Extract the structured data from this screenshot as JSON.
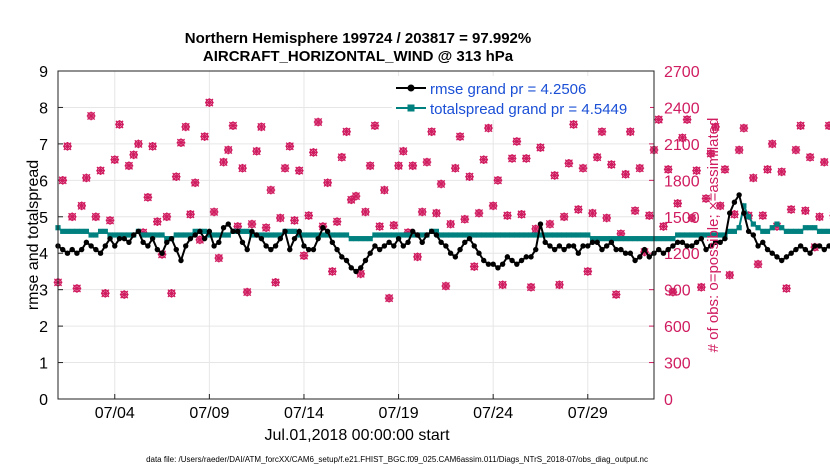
{
  "chart_data": {
    "type": "line",
    "title": "Northern Hemisphere 199724 / 203817 = 97.992%",
    "subtitle": "AIRCRAFT_HORIZONTAL_WIND @ 313 hPa",
    "xlabel": "Jul.01,2018 00:00:00 start",
    "ylabel_left": "rmse and totalspread",
    "ylabel_right": "# of obs: o=possible; ×=assimilated",
    "footnote": "data file: /Users/raeder/DAI/ATM_forcXX/CAM6_setup/f.e21.FHIST_BGC.f09_025.CAM6assim.011/Diags_NTrS_2018-07/obs_diag_output.nc",
    "x_range_days": [
      1,
      32.5
    ],
    "x_ticks": [
      {
        "day": 4,
        "label": "07/04"
      },
      {
        "day": 9,
        "label": "07/09"
      },
      {
        "day": 14,
        "label": "07/14"
      },
      {
        "day": 19,
        "label": "07/19"
      },
      {
        "day": 24,
        "label": "07/24"
      },
      {
        "day": 29,
        "label": "07/29"
      }
    ],
    "ylim_left": [
      0,
      9
    ],
    "yticks_left": [
      "0",
      "1",
      "2",
      "3",
      "4",
      "5",
      "6",
      "7",
      "8",
      "9"
    ],
    "ylim_right": [
      0,
      2700
    ],
    "yticks_right": [
      "0",
      "300",
      "600",
      "900",
      "1200",
      "1500",
      "1800",
      "2100",
      "2400",
      "2700"
    ],
    "grid": true,
    "legend_position": "top-right",
    "series": [
      {
        "name": "rmse grand pr = 4.2506",
        "axis": "left",
        "color": "#000000",
        "marker": "circle",
        "x_start_day": 1.0,
        "x_step_day": 0.25,
        "values": [
          4.2,
          4.1,
          4.0,
          4.1,
          4.0,
          4.1,
          4.3,
          4.2,
          4.1,
          4.0,
          4.2,
          4.4,
          4.2,
          4.4,
          4.4,
          4.3,
          4.5,
          4.6,
          4.3,
          4.2,
          4.4,
          4.1,
          4.0,
          4.3,
          4.4,
          4.1,
          3.8,
          4.2,
          4.4,
          4.5,
          4.6,
          4.4,
          4.6,
          4.2,
          4.3,
          4.7,
          4.8,
          4.6,
          4.6,
          4.3,
          4.1,
          4.6,
          4.5,
          4.4,
          4.2,
          4.1,
          4.2,
          4.4,
          4.6,
          4.1,
          4.4,
          4.6,
          4.2,
          4.1,
          4.1,
          4.4,
          4.7,
          4.6,
          4.3,
          4.1,
          3.9,
          3.8,
          3.6,
          3.5,
          3.6,
          3.8,
          4.0,
          4.2,
          4.1,
          4.2,
          4.3,
          4.2,
          4.4,
          4.2,
          4.3,
          4.6,
          4.5,
          4.3,
          4.5,
          4.6,
          4.5,
          4.3,
          4.2,
          4.0,
          3.9,
          4.1,
          4.3,
          4.4,
          4.2,
          4.0,
          3.8,
          3.7,
          3.7,
          3.6,
          3.7,
          3.9,
          3.8,
          3.7,
          3.8,
          3.9,
          3.9,
          4.1,
          4.8,
          4.3,
          4.2,
          4.1,
          4.2,
          4.1,
          4.2,
          4.2,
          4.0,
          4.2,
          4.2,
          4.3,
          4.3,
          4.1,
          4.2,
          4.3,
          4.1,
          4.1,
          4.0,
          4.0,
          3.8,
          3.9,
          4.1,
          3.9,
          4.0,
          4.1,
          4.0,
          4.1,
          4.2,
          4.3,
          4.3,
          4.2,
          4.2,
          4.3,
          4.4,
          4.1,
          4.2,
          4.3,
          4.3,
          4.4,
          5.1,
          5.4,
          5.6,
          5.1,
          4.6,
          4.5,
          4.2,
          4.3,
          4.1,
          4.0,
          3.9,
          3.8,
          3.9,
          4.0,
          4.1,
          4.2,
          4.1,
          4.0,
          4.2,
          4.2,
          4.1,
          4.2,
          4.2,
          4.1
        ]
      },
      {
        "name": "totalspread grand pr = 4.5449",
        "axis": "left",
        "color": "#00807f",
        "marker": "square",
        "x_start_day": 1.0,
        "x_step_day": 0.25,
        "values": [
          4.7,
          4.6,
          4.6,
          4.6,
          4.6,
          4.6,
          4.6,
          4.5,
          4.5,
          4.6,
          4.6,
          4.5,
          4.5,
          4.5,
          4.5,
          4.5,
          4.5,
          4.6,
          4.5,
          4.5,
          4.5,
          4.5,
          4.5,
          4.4,
          4.4,
          4.5,
          4.5,
          4.5,
          4.5,
          4.6,
          4.6,
          4.6,
          4.5,
          4.5,
          4.5,
          4.5,
          4.5,
          4.6,
          4.6,
          4.6,
          4.6,
          4.5,
          4.5,
          4.5,
          4.5,
          4.5,
          4.5,
          4.5,
          4.6,
          4.6,
          4.6,
          4.5,
          4.5,
          4.5,
          4.5,
          4.5,
          4.5,
          4.5,
          4.5,
          4.5,
          4.5,
          4.5,
          4.4,
          4.4,
          4.4,
          4.4,
          4.4,
          4.5,
          4.5,
          4.5,
          4.5,
          4.5,
          4.5,
          4.5,
          4.5,
          4.5,
          4.5,
          4.5,
          4.5,
          4.6,
          4.6,
          4.5,
          4.5,
          4.5,
          4.5,
          4.5,
          4.5,
          4.5,
          4.5,
          4.5,
          4.5,
          4.5,
          4.5,
          4.5,
          4.5,
          4.5,
          4.5,
          4.5,
          4.5,
          4.5,
          4.5,
          4.5,
          4.5,
          4.5,
          4.5,
          4.5,
          4.5,
          4.5,
          4.5,
          4.5,
          4.5,
          4.5,
          4.5,
          4.4,
          4.4,
          4.4,
          4.4,
          4.4,
          4.4,
          4.4,
          4.4,
          4.4,
          4.4,
          4.4,
          4.4,
          4.4,
          4.4,
          4.4,
          4.4,
          4.4,
          4.4,
          4.5,
          4.5,
          4.5,
          4.5,
          4.5,
          4.5,
          4.5,
          4.5,
          4.5,
          4.5,
          4.5,
          4.6,
          4.6,
          4.7,
          5.3,
          5.0,
          4.8,
          4.7,
          4.6,
          4.6,
          4.7,
          4.8,
          4.7,
          4.6,
          4.6,
          4.6,
          4.6,
          4.7,
          4.7,
          4.7,
          4.6,
          4.6,
          4.6,
          4.7,
          4.6
        ]
      },
      {
        "name": "possible obs",
        "axis": "right",
        "color": "#d01c60",
        "marker": "o",
        "x_start_day": 1.0,
        "x_step_day": 0.25,
        "values": [
          960,
          1800,
          2080,
          1500,
          910,
          1590,
          1820,
          2330,
          1500,
          1880,
          870,
          1470,
          1970,
          2260,
          860,
          1920,
          2010,
          2100,
          1370,
          1660,
          2080,
          1460,
          1190,
          1500,
          870,
          1830,
          2110,
          2240,
          1520,
          1780,
          1310,
          2160,
          2440,
          1540,
          1160,
          1950,
          2050,
          2250,
          1420,
          1900,
          880,
          1440,
          2040,
          2240,
          1410,
          1720,
          960,
          1490,
          1900,
          2080,
          1470,
          1880,
          1180,
          1510,
          2030,
          2280,
          1420,
          1780,
          1050,
          1460,
          1990,
          2200,
          1640,
          1670,
          1030,
          1540,
          1920,
          2250,
          1420,
          1720,
          830,
          1430,
          1920,
          2040,
          1370,
          1920,
          1170,
          1540,
          1950,
          2200,
          1530,
          1770,
          930,
          1440,
          1900,
          2160,
          1480,
          1830,
          1090,
          1530,
          1970,
          2230,
          1590,
          1800,
          940,
          1510,
          1980,
          2120,
          1520,
          1980,
          920,
          1400,
          2070,
          2350,
          1440,
          1840,
          940,
          1500,
          1940,
          2260,
          1560,
          1900,
          1050,
          1530,
          1990,
          2200,
          1490,
          1930,
          860,
          1360,
          1850,
          2200,
          1550,
          1900,
          1210,
          1510,
          2050,
          2300,
          1420,
          1890,
          880,
          1610,
          2150,
          2300,
          1490,
          1880,
          920,
          1650,
          2020,
          2240,
          1590,
          1890,
          1020,
          1520,
          2050,
          2230,
          1510,
          1820,
          1110,
          1510,
          1890,
          2100,
          1420,
          1870,
          910,
          1560,
          2050,
          2250,
          1550,
          1990,
          1250,
          1500,
          1950,
          2250,
          1510,
          1880,
          0
        ]
      },
      {
        "name": "assimilated obs",
        "axis": "right",
        "color": "#d01c60",
        "marker": "x",
        "x_start_day": 1.0,
        "x_step_day": 0.25,
        "values": [
          960,
          1800,
          2080,
          1500,
          910,
          1590,
          1820,
          2330,
          1500,
          1880,
          870,
          1470,
          1970,
          2260,
          860,
          1920,
          2010,
          2100,
          1370,
          1660,
          2080,
          1460,
          1190,
          1500,
          870,
          1830,
          2110,
          2240,
          1520,
          1780,
          1310,
          2160,
          2440,
          1540,
          1160,
          1950,
          2050,
          2250,
          1420,
          1900,
          880,
          1440,
          2040,
          2240,
          1410,
          1720,
          960,
          1490,
          1900,
          2080,
          1470,
          1880,
          1180,
          1510,
          2030,
          2280,
          1420,
          1780,
          1050,
          1460,
          1990,
          2200,
          1640,
          1670,
          1030,
          1540,
          1920,
          2250,
          1420,
          1720,
          830,
          1430,
          1920,
          2040,
          1370,
          1920,
          1170,
          1540,
          1950,
          2200,
          1530,
          1770,
          930,
          1440,
          1900,
          2160,
          1480,
          1830,
          1090,
          1530,
          1970,
          2230,
          1590,
          1800,
          940,
          1510,
          1980,
          2120,
          1520,
          1980,
          920,
          1400,
          2070,
          2350,
          1440,
          1840,
          940,
          1500,
          1940,
          2260,
          1560,
          1900,
          1050,
          1530,
          1990,
          2200,
          1490,
          1930,
          860,
          1360,
          1850,
          2200,
          1550,
          1900,
          1210,
          1510,
          2050,
          2300,
          1420,
          1890,
          880,
          1610,
          2150,
          2300,
          1490,
          1880,
          920,
          1650,
          2020,
          2240,
          1590,
          1890,
          1020,
          1520,
          2050,
          2230,
          1510,
          1820,
          1110,
          1510,
          1890,
          2100,
          1420,
          1870,
          910,
          1560,
          2050,
          2250,
          1550,
          1990,
          1250,
          1500,
          1950,
          2250,
          1510,
          1880,
          0
        ]
      }
    ]
  }
}
